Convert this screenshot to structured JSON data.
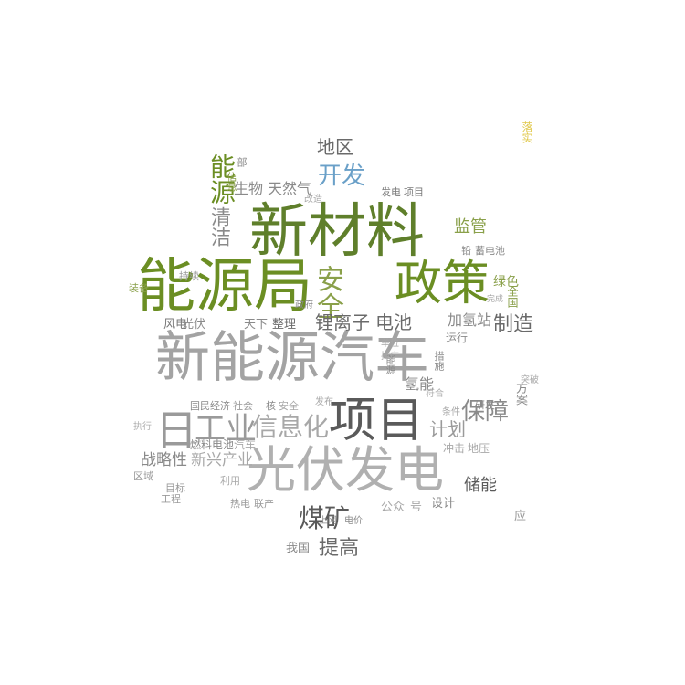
{
  "words": [
    {
      "text": "新能源汽车",
      "color": "#a3a3a3"
    },
    {
      "text": "新材料",
      "color": "#5f7f2b"
    },
    {
      "text": "能源局",
      "color": "#6b8e23"
    },
    {
      "text": "光伏发电",
      "color": "#b0b0b0"
    },
    {
      "text": "项目",
      "color": "#5a5a5a"
    },
    {
      "text": "政策",
      "color": "#6b8e23"
    },
    {
      "text": "工业",
      "color": "#9a9a9a"
    },
    {
      "text": "信息化",
      "color": "#a8a8a8"
    },
    {
      "text": "日",
      "color": "#9a9a9a"
    },
    {
      "text": "保障",
      "color": "#8a8a8a"
    },
    {
      "text": "开发",
      "color": "#6aa0c8"
    },
    {
      "text": "安全",
      "color": "#8aa04a"
    },
    {
      "text": "煤矿",
      "color": "#5a5a5a"
    },
    {
      "text": "能源",
      "color": "#6b8e23"
    },
    {
      "text": "清洁",
      "color": "#8a8a8a"
    },
    {
      "text": "锂离子",
      "color": "#6a6a6a"
    },
    {
      "text": "电池",
      "color": "#6a6a6a"
    },
    {
      "text": "制造",
      "color": "#6a6a6a"
    },
    {
      "text": "提高",
      "color": "#6a6a6a"
    },
    {
      "text": "地区",
      "color": "#6a6a6a"
    },
    {
      "text": "储能",
      "color": "#5a5a5a"
    },
    {
      "text": "计划",
      "color": "#9a9a9a"
    },
    {
      "text": "监管",
      "color": "#8aa04a"
    },
    {
      "text": "天然气",
      "color": "#8a8a8a"
    },
    {
      "text": "生物",
      "color": "#8a8a8a"
    },
    {
      "text": "加氢站",
      "color": "#8a8a8a"
    },
    {
      "text": "氢能",
      "color": "#8a8a8a"
    },
    {
      "text": "战略性",
      "color": "#8a8a8a"
    },
    {
      "text": "新兴产业",
      "color": "#a8a8a8"
    },
    {
      "text": "燃料电池",
      "color": "#8a8a8a"
    },
    {
      "text": "汽车",
      "color": "#a8a8a8"
    },
    {
      "text": "国民经济",
      "color": "#8a8a8a"
    },
    {
      "text": "社会",
      "color": "#9a9a9a"
    },
    {
      "text": "核",
      "color": "#8a8a8a"
    },
    {
      "text": "安全",
      "color": "#a8a8a8"
    },
    {
      "text": "风电",
      "color": "#7a7a7a"
    },
    {
      "text": "光伏",
      "color": "#8a8a8a"
    },
    {
      "text": "天下",
      "color": "#8a8a8a"
    },
    {
      "text": "整理",
      "color": "#6a6a6a"
    },
    {
      "text": "绿色",
      "color": "#8aa04a"
    },
    {
      "text": "运行",
      "color": "#8a8a8a"
    },
    {
      "text": "方案",
      "color": "#8a8a8a"
    },
    {
      "text": "研发",
      "color": "#8a8a8a"
    },
    {
      "text": "冲击",
      "color": "#a8a8a8"
    },
    {
      "text": "地压",
      "color": "#a8a8a8"
    },
    {
      "text": "设计",
      "color": "#8a8a8a"
    },
    {
      "text": "号",
      "color": "#a8a8a8"
    },
    {
      "text": "公众",
      "color": "#a8a8a8"
    },
    {
      "text": "我国",
      "color": "#8a8a8a"
    },
    {
      "text": "热电",
      "color": "#9a9a9a"
    },
    {
      "text": "联产",
      "color": "#9a9a9a"
    },
    {
      "text": "利用",
      "color": "#a8a8a8"
    },
    {
      "text": "区域",
      "color": "#9a9a9a"
    },
    {
      "text": "目标",
      "color": "#9a9a9a"
    },
    {
      "text": "工程",
      "color": "#9a9a9a"
    },
    {
      "text": "发电",
      "color": "#7a7a7a"
    },
    {
      "text": "项目",
      "color": "#7a7a7a"
    },
    {
      "text": "持续",
      "color": "#9a9a9a"
    },
    {
      "text": "装备",
      "color": "#8aa04a"
    },
    {
      "text": "政府",
      "color": "#8a8a8a"
    },
    {
      "text": "改造",
      "color": "#a8a8a8"
    },
    {
      "text": "应",
      "color": "#9a9a9a"
    },
    {
      "text": "落实",
      "color": "#e0c84a"
    },
    {
      "text": "能源",
      "color": "#8a8a8a"
    },
    {
      "text": "部",
      "color": "#8a8a8a"
    },
    {
      "text": "信息",
      "color": "#8aa04a"
    },
    {
      "text": "电价",
      "color": "#8a8a8a"
    },
    {
      "text": "上网",
      "color": "#8a8a8a"
    },
    {
      "text": "措施",
      "color": "#8a8a8a"
    },
    {
      "text": "铅",
      "color": "#8a8a8a"
    },
    {
      "text": "蓄电池",
      "color": "#8a8a8a"
    },
    {
      "text": "全国",
      "color": "#8aa04a"
    },
    {
      "text": "完成",
      "color": "#a8a8a8"
    },
    {
      "text": "执行",
      "color": "#b0b0b0"
    },
    {
      "text": "条件",
      "color": "#a8a8a8"
    },
    {
      "text": "符合",
      "color": "#b0b0b0"
    },
    {
      "text": "单位",
      "color": "#a8a8a8"
    },
    {
      "text": "推广",
      "color": "#a8a8a8"
    },
    {
      "text": "发布",
      "color": "#a8a8a8"
    },
    {
      "text": "突破",
      "color": "#a8a8a8"
    }
  ]
}
